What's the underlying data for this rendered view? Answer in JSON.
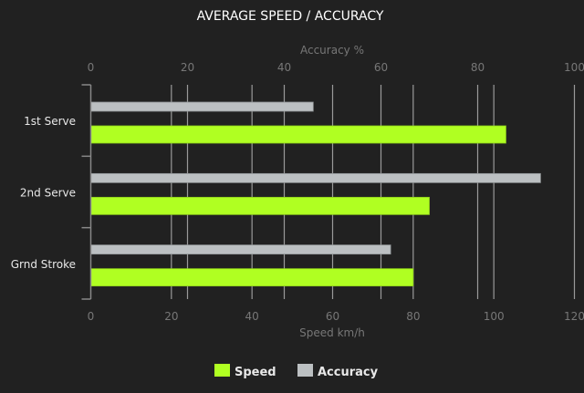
{
  "chart_data": {
    "type": "bar",
    "orientation": "horizontal",
    "title": "AVERAGE SPEED / ACCURACY",
    "categories": [
      "1st Serve",
      "2nd Serve",
      "Grnd Stroke"
    ],
    "series": [
      {
        "name": "Speed",
        "axis": "bottom",
        "color": "#b0ff22",
        "values": [
          103,
          84,
          80
        ]
      },
      {
        "name": "Accuracy",
        "axis": "top",
        "color": "#bcc0c2",
        "values": [
          46,
          93,
          62
        ]
      }
    ],
    "bottom_axis": {
      "label": "Speed km/h",
      "range": [
        0,
        120
      ],
      "ticks": [
        0,
        20,
        40,
        60,
        80,
        100,
        120
      ]
    },
    "top_axis": {
      "label": "Accuracy %",
      "range": [
        0,
        100
      ],
      "ticks": [
        0,
        20,
        40,
        60,
        80,
        100
      ]
    },
    "grid": true,
    "legend": "bottom"
  },
  "colors": {
    "background": "#212121",
    "grid": "#9a9a9a",
    "tick_text": "#777777",
    "label_text": "#e8e8e8"
  }
}
